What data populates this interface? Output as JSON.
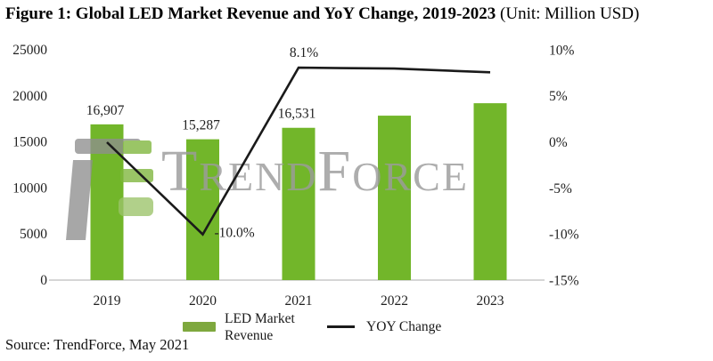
{
  "title": {
    "main": "Figure 1: Global LED Market Revenue and YoY Change, 2019-2023",
    "unit": "(Unit: Million USD)"
  },
  "source": "Source: TrendForce, May 2021",
  "watermark": {
    "text": "TrendForce"
  },
  "legend": {
    "bar_label": "LED Market Revenue",
    "line_label": "YOY Change"
  },
  "colors": {
    "bar": "#72b62a",
    "legend_swatch": "#7ea83e",
    "line": "#1a1a1a",
    "axis_line": "#c8c8c8",
    "watermark_gray": "#9c9c9c",
    "logo_green": "#7eb63c",
    "logo_green_light": "#9cc36a",
    "logo_gray": "#8f8f8f"
  },
  "chart_data": {
    "type": "bar+line combo",
    "title": "Global LED Market Revenue and YoY Change, 2019-2023",
    "unit": "Million USD",
    "categories": [
      "2019",
      "2020",
      "2021",
      "2022",
      "2023"
    ],
    "series": [
      {
        "name": "LED Market Revenue",
        "type": "bar",
        "axis": "left",
        "values": [
          16907,
          15287,
          16531,
          17850,
          19200
        ],
        "point_labels": [
          "16,907",
          "15,287",
          "16,531",
          "",
          ""
        ]
      },
      {
        "name": "YOY Change",
        "type": "line",
        "axis": "right",
        "values": [
          0,
          -10.0,
          8.1,
          8.0,
          7.6
        ],
        "point_labels": [
          "",
          "-10.0%",
          "8.1%",
          "",
          ""
        ]
      }
    ],
    "left_axis": {
      "tick_values": [
        0,
        5000,
        10000,
        15000,
        20000,
        25000
      ],
      "tick_labels": [
        "0",
        "5000",
        "10000",
        "15000",
        "20000",
        "25000"
      ],
      "range": [
        0,
        25000
      ]
    },
    "right_axis": {
      "tick_values": [
        -15,
        -10,
        -5,
        0,
        5,
        10
      ],
      "tick_labels": [
        "-15%",
        "-10%",
        "-5%",
        "0%",
        "5%",
        "10%"
      ],
      "range": [
        -15,
        10
      ]
    },
    "grid": false,
    "legend_position": "bottom"
  }
}
